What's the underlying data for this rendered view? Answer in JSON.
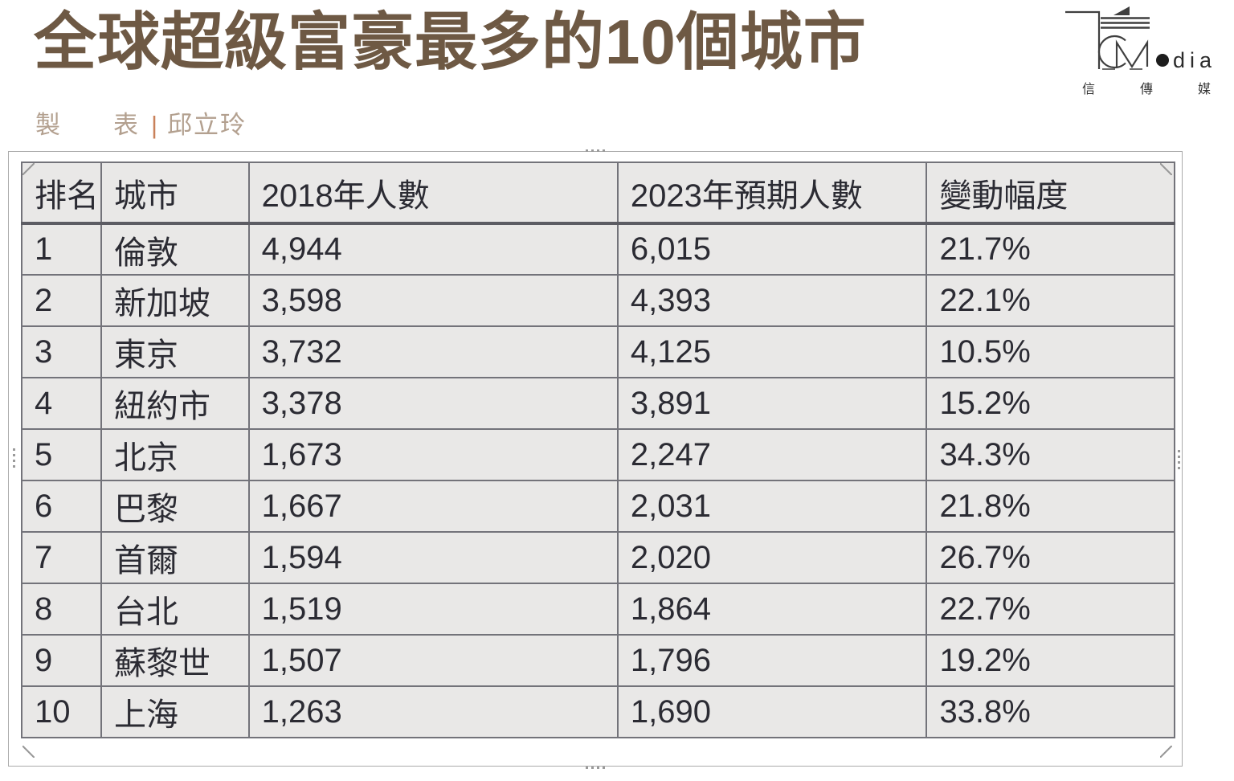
{
  "header": {
    "title": "全球超級富豪最多的10個城市",
    "byline": {
      "word1": "製",
      "word2": "表",
      "separator": "|",
      "author": "邱立玲"
    }
  },
  "logo": {
    "name": "信傳媒 CMedia",
    "wordmark": "edia",
    "wordmark_tail": "dia",
    "cjk_chars": [
      "信",
      "傳",
      "媒"
    ]
  },
  "table": {
    "headers": [
      "排名",
      "城市",
      "2018年人數",
      "2023年預期人數",
      "變動幅度"
    ],
    "rows": [
      [
        "1",
        "倫敦",
        "4,944",
        "6,015",
        "21.7%"
      ],
      [
        "2",
        "新加坡",
        "3,598",
        "4,393",
        "22.1%"
      ],
      [
        "3",
        "東京",
        "3,732",
        "4,125",
        "10.5%"
      ],
      [
        "4",
        "紐約市",
        "3,378",
        "3,891",
        "15.2%"
      ],
      [
        "5",
        "北京",
        "1,673",
        "2,247",
        "34.3%"
      ],
      [
        "6",
        "巴黎",
        "1,667",
        "2,031",
        "21.8%"
      ],
      [
        "7",
        "首爾",
        "1,594",
        "2,020",
        "26.7%"
      ],
      [
        "8",
        "台北",
        "1,519",
        "1,864",
        "22.7%"
      ],
      [
        "9",
        "蘇黎世",
        "1,507",
        "1,796",
        "19.2%"
      ],
      [
        "10",
        "上海",
        "1,263",
        "1,690",
        "33.8%"
      ]
    ]
  },
  "chart_data": {
    "type": "table",
    "title": "全球超級富豪最多的10個城市",
    "columns": [
      "排名",
      "城市",
      "2018年人數",
      "2023年預期人數",
      "變動幅度"
    ],
    "rows": [
      {
        "rank": 1,
        "city": "倫敦",
        "count_2018": 4944,
        "count_2023_expected": 6015,
        "change_pct": 21.7
      },
      {
        "rank": 2,
        "city": "新加坡",
        "count_2018": 3598,
        "count_2023_expected": 4393,
        "change_pct": 22.1
      },
      {
        "rank": 3,
        "city": "東京",
        "count_2018": 3732,
        "count_2023_expected": 4125,
        "change_pct": 10.5
      },
      {
        "rank": 4,
        "city": "紐約市",
        "count_2018": 3378,
        "count_2023_expected": 3891,
        "change_pct": 15.2
      },
      {
        "rank": 5,
        "city": "北京",
        "count_2018": 1673,
        "count_2023_expected": 2247,
        "change_pct": 34.3
      },
      {
        "rank": 6,
        "city": "巴黎",
        "count_2018": 1667,
        "count_2023_expected": 2031,
        "change_pct": 21.8
      },
      {
        "rank": 7,
        "city": "首爾",
        "count_2018": 1594,
        "count_2023_expected": 2020,
        "change_pct": 26.7
      },
      {
        "rank": 8,
        "city": "台北",
        "count_2018": 1519,
        "count_2023_expected": 1864,
        "change_pct": 22.7
      },
      {
        "rank": 9,
        "city": "蘇黎世",
        "count_2018": 1507,
        "count_2023_expected": 1796,
        "change_pct": 19.2
      },
      {
        "rank": 10,
        "city": "上海",
        "count_2018": 1263,
        "count_2023_expected": 1690,
        "change_pct": 33.8
      }
    ]
  },
  "colors": {
    "title_brown": "#6e5944",
    "byline_tan": "#b3a08f",
    "byline_separator_orange": "#c9815a",
    "table_background": "#e9e8e7",
    "grid_line": "#73737a",
    "header_separator": "#5c5c63",
    "cell_text": "#2b2b33",
    "frame_border": "#ababab",
    "handle_dot": "#9a9a9a",
    "logo_ink": "#3f3f3f"
  }
}
